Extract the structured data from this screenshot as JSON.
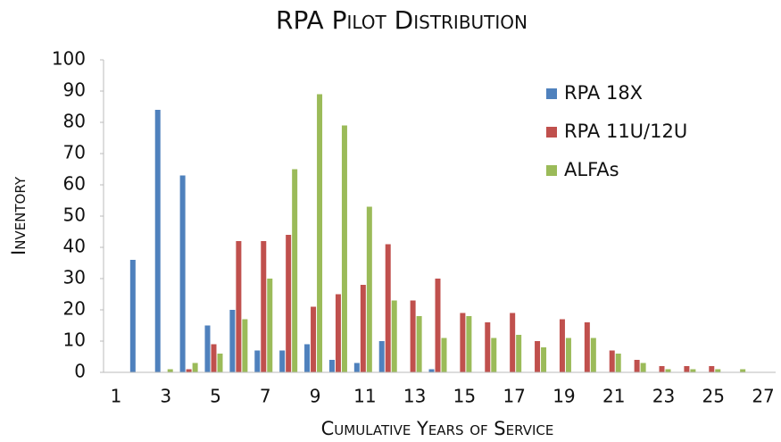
{
  "chart_data": {
    "type": "bar",
    "title": "RPA Pilot Distribution",
    "x_label": "Cumulative Years of Service",
    "y_label": "Inventory",
    "categories": [
      "1",
      null,
      "3",
      null,
      "5",
      null,
      "7",
      null,
      "9",
      null,
      "11",
      null,
      "13",
      null,
      "15",
      null,
      "17",
      null,
      "19",
      null,
      "21",
      null,
      "23",
      null,
      "25",
      null,
      "27"
    ],
    "series": [
      {
        "name": "RPA 18X",
        "color": "#4f81bd",
        "values": [
          0,
          36,
          84,
          63,
          15,
          20,
          7,
          7,
          9,
          4,
          3,
          10,
          0,
          1,
          0,
          0,
          0,
          0,
          0,
          0,
          0,
          0,
          0,
          0,
          0,
          0,
          0
        ]
      },
      {
        "name": "RPA 11U/12U",
        "color": "#c0504d",
        "values": [
          0,
          0,
          0,
          1,
          9,
          42,
          42,
          44,
          21,
          25,
          28,
          41,
          23,
          30,
          19,
          16,
          19,
          10,
          17,
          16,
          7,
          4,
          2,
          2,
          2,
          0,
          0
        ]
      },
      {
        "name": "ALFAs",
        "color": "#9bbb59",
        "values": [
          0,
          0,
          1,
          3,
          6,
          17,
          30,
          65,
          89,
          79,
          53,
          23,
          18,
          11,
          18,
          11,
          12,
          8,
          11,
          11,
          6,
          3,
          1,
          1,
          1,
          1,
          0
        ]
      }
    ],
    "ylim": [
      0,
      100
    ],
    "yticks": [
      0,
      10,
      20,
      30,
      40,
      50,
      60,
      70,
      80,
      90,
      100
    ],
    "grid": false,
    "legend": "top-right"
  }
}
